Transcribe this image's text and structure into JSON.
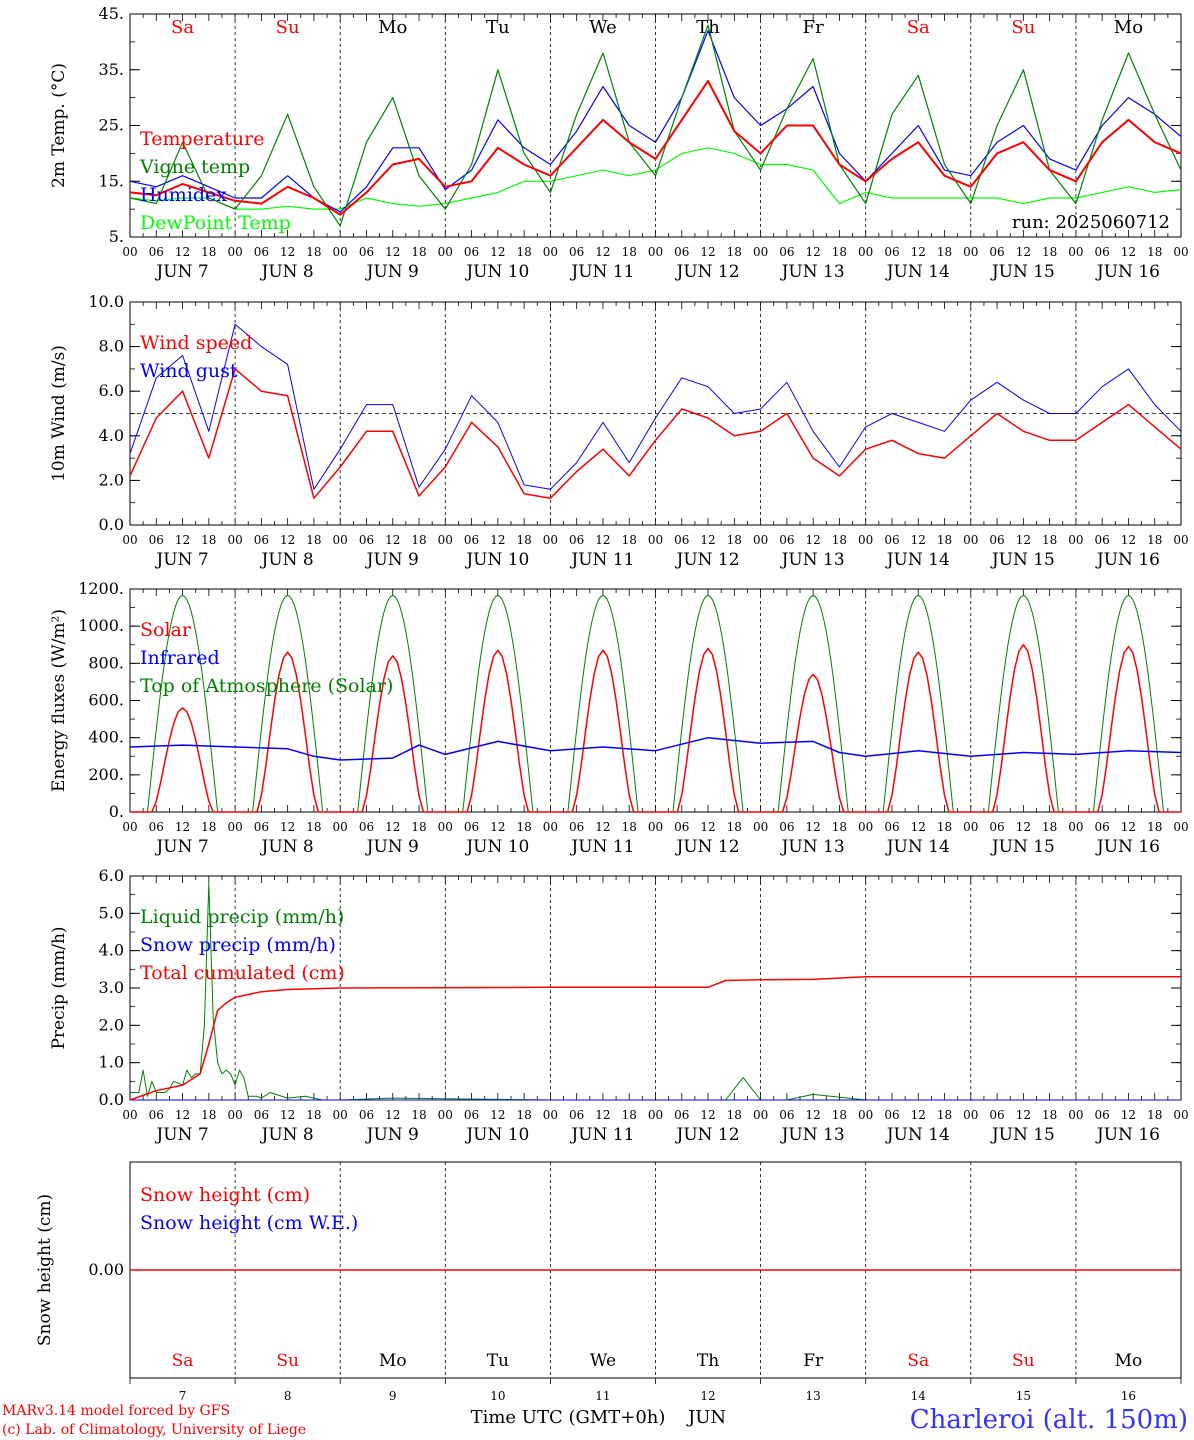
{
  "days": [
    "Sa",
    "Su",
    "Mo",
    "Tu",
    "We",
    "Th",
    "Fr",
    "Sa",
    "Su",
    "Mo"
  ],
  "weekend": [
    true,
    true,
    false,
    false,
    false,
    false,
    false,
    true,
    true,
    false
  ],
  "dates": [
    "JUN  7",
    "JUN  8",
    "JUN  9",
    "JUN 10",
    "JUN 11",
    "JUN 12",
    "JUN 13",
    "JUN 14",
    "JUN 15",
    "JUN 16"
  ],
  "bottom_dates": [
    "7",
    "8",
    "9",
    "10",
    "11",
    "12",
    "13",
    "14",
    "15",
    "16"
  ],
  "hour_ticks": [
    "00",
    "06",
    "12",
    "18"
  ],
  "last_tick": "00",
  "run_label": "run: 2025060712",
  "footer": {
    "credit1": "MARv3.14 model forced by GFS",
    "credit2": "(c) Lab. of Climatology, University of Liege",
    "xlabel": "Time UTC (GMT+0h)",
    "month": "JUN",
    "station": "Charleroi (alt. 150m)"
  },
  "colors": {
    "red": "#ff0000",
    "green": "#008000",
    "blue": "#0000ff",
    "lime": "#00ff00",
    "station": "#3333ff"
  },
  "chart_data": [
    {
      "id": "temp",
      "type": "line",
      "ylabel": "2m Temp. (°C)",
      "ylim": [
        5,
        45
      ],
      "yticks": [
        5,
        15,
        25,
        35,
        45
      ],
      "ytick_labels": [
        "5.",
        "15.",
        "25.",
        "35.",
        "45."
      ],
      "x_hours": [
        0,
        6,
        12,
        18,
        24,
        30,
        36,
        42,
        48,
        54,
        60,
        66,
        72,
        78,
        84,
        90,
        96,
        102,
        108,
        114,
        120,
        126,
        132,
        138,
        144,
        150,
        156,
        162,
        168,
        174,
        180,
        186,
        192,
        198,
        204,
        210,
        216,
        222,
        228,
        234,
        240
      ],
      "series": [
        {
          "name": "Temperature",
          "color": "#ff0000",
          "width": 2,
          "values": [
            13,
            12.5,
            14.5,
            13,
            11.5,
            11,
            14,
            12,
            9,
            13,
            18,
            19,
            14,
            15,
            21,
            18,
            16,
            21,
            26,
            22,
            19,
            26,
            33,
            24,
            20,
            25,
            25,
            18,
            15,
            19,
            22,
            16,
            14,
            20,
            22,
            17,
            15,
            22,
            26,
            22,
            20
          ]
        },
        {
          "name": "Vigne temp",
          "color": "#008000",
          "width": 1.2,
          "values": [
            12,
            11,
            22,
            12,
            10,
            16,
            27,
            14,
            7,
            22,
            30,
            16,
            10,
            18,
            35,
            20,
            13,
            27,
            38,
            22,
            16,
            30,
            43,
            24,
            17,
            28,
            37,
            18,
            11,
            27,
            34,
            18,
            11,
            25,
            35,
            17,
            11,
            26,
            38,
            27,
            17
          ]
        },
        {
          "name": "Humidex",
          "color": "#0000ff",
          "width": 1.2,
          "values": [
            15,
            14,
            16,
            14,
            12,
            12,
            16,
            12,
            9.5,
            14,
            21,
            21,
            13.5,
            17,
            26,
            21,
            18,
            24,
            32,
            25,
            22,
            30,
            42,
            30,
            25,
            28,
            32,
            20,
            15,
            20,
            25,
            17,
            16,
            22,
            25,
            19,
            17,
            25,
            30,
            27,
            23
          ]
        },
        {
          "name": "DewPoint Temp",
          "color": "#00ff00",
          "width": 1.2,
          "values": [
            12,
            11.5,
            12,
            12,
            10,
            10,
            10.5,
            10,
            10,
            12,
            11,
            10.5,
            11,
            12,
            13,
            15,
            15,
            16,
            17,
            16,
            17,
            20,
            21,
            20,
            18,
            18,
            17,
            11,
            13,
            12,
            12,
            12,
            12,
            12,
            11,
            12,
            12,
            13,
            14,
            13,
            13.5
          ]
        }
      ]
    },
    {
      "id": "wind",
      "type": "line",
      "ylabel": "10m Wind (m/s)",
      "ylim": [
        0,
        10
      ],
      "yticks": [
        0,
        2,
        4,
        6,
        8,
        10
      ],
      "ytick_labels": [
        "0.0",
        "2.0",
        "4.0",
        "6.0",
        "8.0",
        "10.0"
      ],
      "hline": 5,
      "x_hours": [
        0,
        6,
        12,
        18,
        24,
        30,
        36,
        42,
        48,
        54,
        60,
        66,
        72,
        78,
        84,
        90,
        96,
        102,
        108,
        114,
        120,
        126,
        132,
        138,
        144,
        150,
        156,
        162,
        168,
        174,
        180,
        186,
        192,
        198,
        204,
        210,
        216,
        222,
        228,
        234,
        240
      ],
      "series": [
        {
          "name": "Wind speed",
          "color": "#ff0000",
          "width": 1.5,
          "values": [
            2.2,
            4.8,
            6,
            3,
            7,
            6,
            5.8,
            1.2,
            2.6,
            4.2,
            4.2,
            1.3,
            2.6,
            4.6,
            3.5,
            1.4,
            1.2,
            2.4,
            3.4,
            2.2,
            3.8,
            5.2,
            4.8,
            4,
            4.2,
            5,
            3,
            2.2,
            3.4,
            3.8,
            3.2,
            3,
            4,
            5,
            4.2,
            3.8,
            3.8,
            4.6,
            5.4,
            4.4,
            3.4
          ]
        },
        {
          "name": "Wind gust",
          "color": "#0000ff",
          "width": 1,
          "values": [
            3.2,
            6.6,
            7.6,
            4.2,
            9,
            8,
            7.2,
            1.6,
            3.4,
            5.4,
            5.4,
            1.7,
            3.4,
            5.8,
            4.6,
            1.8,
            1.6,
            2.8,
            4.6,
            2.8,
            4.8,
            6.6,
            6.2,
            5,
            5.2,
            6.4,
            4.2,
            2.6,
            4.4,
            5,
            4.6,
            4.2,
            5.6,
            6.4,
            5.6,
            5,
            5,
            6.2,
            7,
            5.4,
            4.2
          ]
        }
      ]
    },
    {
      "id": "energy",
      "type": "line",
      "ylabel": "Energy fluxes (W/m²)",
      "ylim": [
        0,
        1200
      ],
      "yticks": [
        0,
        200,
        400,
        600,
        800,
        1000,
        1200
      ],
      "ytick_labels": [
        "0.",
        "200.",
        "400.",
        "600.",
        "800.",
        "1000.",
        "1200."
      ],
      "series": [
        {
          "name": "Solar",
          "color": "#ff0000",
          "width": 1.5,
          "daily_peak": [
            560,
            860,
            840,
            870,
            870,
            880,
            740,
            860,
            900,
            890
          ]
        },
        {
          "name": "Infrared",
          "color": "#0000ff",
          "width": 1.5,
          "x_hours": [
            0,
            12,
            24,
            36,
            42,
            48,
            60,
            66,
            72,
            84,
            96,
            108,
            120,
            132,
            144,
            156,
            162,
            168,
            180,
            192,
            204,
            216,
            228,
            240
          ],
          "values": [
            350,
            360,
            350,
            340,
            300,
            280,
            290,
            360,
            310,
            380,
            330,
            350,
            330,
            400,
            370,
            380,
            320,
            300,
            330,
            300,
            320,
            310,
            330,
            320
          ]
        },
        {
          "name": "Top of Atmosphere (Solar)",
          "color": "#008000",
          "width": 1,
          "daily_peak": [
            1165,
            1165,
            1165,
            1165,
            1165,
            1165,
            1165,
            1165,
            1165,
            1165
          ]
        }
      ]
    },
    {
      "id": "precip",
      "type": "line",
      "ylabel": "Precip (mm/h)",
      "ylim": [
        0,
        6
      ],
      "yticks": [
        0,
        1,
        2,
        3,
        4,
        5,
        6
      ],
      "ytick_labels": [
        "0.0",
        "1.0",
        "2.0",
        "3.0",
        "4.0",
        "5.0",
        "6.0"
      ],
      "series": [
        {
          "name": "Liquid precip (mm/h)",
          "color": "#008000",
          "width": 1,
          "x_hours": [
            0,
            2,
            3,
            4,
            5,
            6,
            8,
            9,
            10,
            12,
            13,
            14,
            15,
            16,
            17,
            18,
            19,
            20,
            21,
            22,
            23,
            24,
            25,
            26,
            27,
            28,
            29,
            30,
            32,
            36,
            40,
            44,
            48,
            60,
            96,
            110,
            136,
            140,
            144,
            150,
            156,
            164,
            168,
            240
          ],
          "values": [
            0.2,
            0.2,
            0.8,
            0.1,
            0.5,
            0.2,
            0.2,
            0.3,
            0.5,
            0.4,
            0.8,
            0.6,
            0.7,
            0.7,
            2.0,
            5.8,
            2.2,
            1.0,
            0.7,
            0.8,
            0.7,
            0.4,
            0.8,
            0.6,
            0.1,
            0.1,
            0.1,
            0.05,
            0.2,
            0.05,
            0.1,
            0,
            0,
            0.05,
            0,
            0,
            0,
            0.6,
            0,
            0,
            0.15,
            0.05,
            0,
            0
          ]
        },
        {
          "name": "Snow precip (mm/h)",
          "color": "#0000ff",
          "width": 1,
          "x_hours": [
            0,
            240
          ],
          "values": [
            0,
            0
          ]
        },
        {
          "name": "Total cumulated (cm)",
          "color": "#ff0000",
          "width": 1.5,
          "x_hours": [
            0,
            6,
            12,
            16,
            18,
            20,
            22,
            24,
            30,
            36,
            48,
            96,
            132,
            136,
            144,
            156,
            168,
            240
          ],
          "values": [
            0,
            0.25,
            0.4,
            0.7,
            1.5,
            2.4,
            2.6,
            2.75,
            2.9,
            2.96,
            3.0,
            3.02,
            3.02,
            3.2,
            3.22,
            3.23,
            3.3,
            3.3
          ]
        }
      ]
    },
    {
      "id": "snow",
      "type": "line",
      "ylabel": "Snow height (cm)",
      "yticks": [
        0
      ],
      "ytick_labels": [
        "0.00"
      ],
      "series": [
        {
          "name": "Snow height (cm)",
          "color": "#ff0000",
          "width": 1.5,
          "x_hours": [
            0,
            240
          ],
          "values": [
            0,
            0
          ]
        },
        {
          "name": "Snow height (cm W.E.)",
          "color": "#0000ff",
          "width": 1,
          "x_hours": [
            0,
            240
          ],
          "values": [
            0,
            0
          ]
        }
      ]
    }
  ]
}
